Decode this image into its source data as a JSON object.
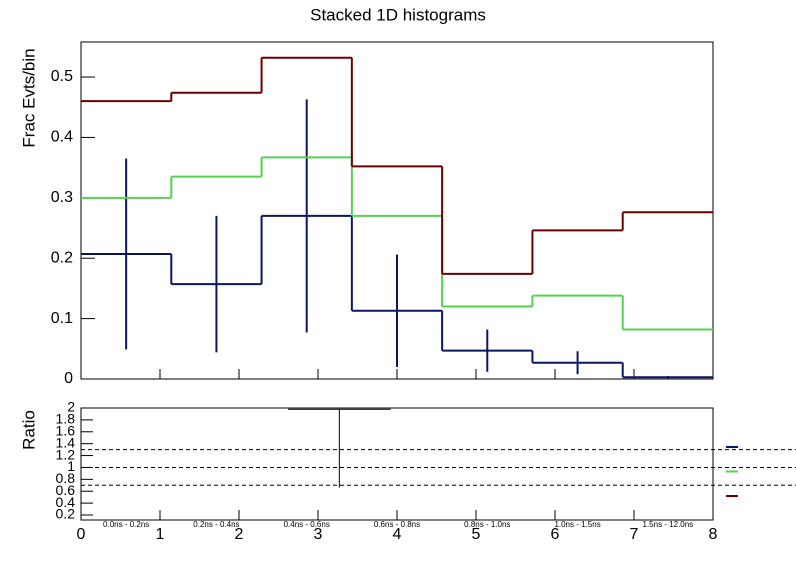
{
  "chart_data": {
    "type": "stacked_histogram",
    "title": "Stacked 1D histograms",
    "ylabel": "Frac Evts/bin",
    "bins": [
      0,
      1.142857,
      2.285714,
      3.428571,
      4.571429,
      5.714286,
      6.857143,
      8
    ],
    "bin_labels": [
      "0.0ns - 0.2ns",
      "0.2ns - 0.4ns",
      "0.4ns - 0.6ns",
      "0.6ns - 0.8ns",
      "0.8ns - 1.0ns",
      "1.0ns - 1.5ns",
      "1.5ns - 12.0ns"
    ],
    "series": [
      {
        "color": "#0a1660",
        "values": [
          0.207,
          0.157,
          0.27,
          0.113,
          0.047,
          0.027,
          0.003
        ],
        "errors": [
          0.158,
          0.113,
          0.193,
          0.093,
          0.035,
          0.019,
          0.002
        ]
      },
      {
        "color": "#55d050",
        "values": [
          0.093,
          0.178,
          0.097,
          0.157,
          0.073,
          0.111,
          0.079
        ]
      },
      {
        "color": "#6b0000",
        "values": [
          0.16,
          0.139,
          0.165,
          0.082,
          0.054,
          0.108,
          0.194
        ]
      }
    ],
    "xlim": [
      0,
      8
    ],
    "xticks": [
      0,
      1,
      2,
      3,
      4,
      5,
      6,
      7,
      8
    ],
    "ylim": [
      0,
      0.558
    ],
    "yticks": [
      0,
      0.1,
      0.2,
      0.3,
      0.4,
      0.5
    ],
    "ratio": {
      "ylabel": "Ratio",
      "ylim": [
        0.116,
        2
      ],
      "yticks": [
        0.2,
        0.4,
        0.6,
        0.8,
        1,
        1.2,
        1.4,
        1.6,
        1.8,
        2
      ],
      "reference_lines": [
        1.3,
        1,
        0.7
      ],
      "point": {
        "x": 3.27,
        "xerr": 0.65,
        "y": 1.98,
        "yerr_low": 1.32
      }
    }
  }
}
